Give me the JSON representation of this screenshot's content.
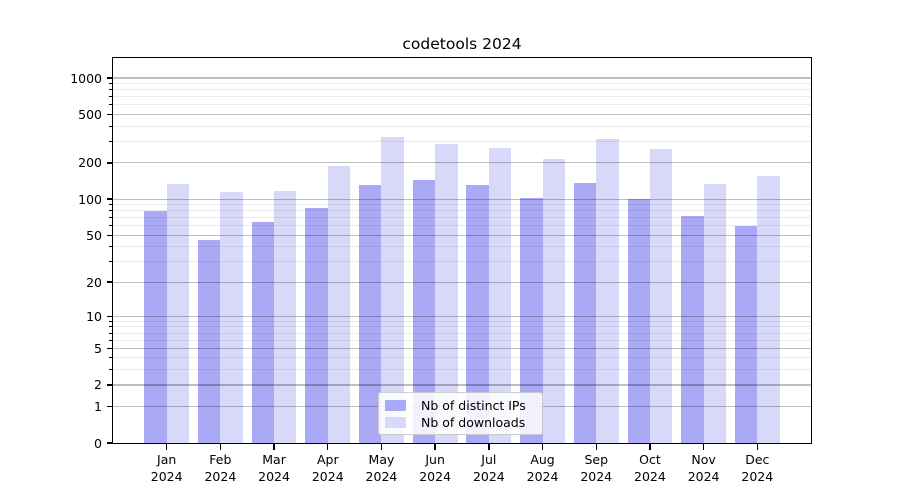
{
  "chart_data": {
    "type": "bar",
    "title": "codetools 2024",
    "categories": [
      "Jan",
      "Feb",
      "Mar",
      "Apr",
      "May",
      "Jun",
      "Jul",
      "Aug",
      "Sep",
      "Oct",
      "Nov",
      "Dec"
    ],
    "year_label": "2024",
    "series": [
      {
        "name": "Nb of distinct IPs",
        "color": "#a9a9f5",
        "values": [
          80,
          46,
          65,
          84,
          131,
          144,
          131,
          103,
          136,
          100,
          72,
          60
        ]
      },
      {
        "name": "Nb of downloads",
        "color": "#d8d8f8",
        "values": [
          133,
          114,
          118,
          190,
          325,
          284,
          267,
          215,
          315,
          260,
          134,
          156
        ]
      }
    ],
    "y_scale": "log10(value+1)",
    "y_major_ticks": [
      0,
      1,
      2,
      5,
      10,
      20,
      50,
      100,
      200,
      500,
      1000
    ],
    "y_minor_ticks": [
      3,
      4,
      6,
      7,
      8,
      9,
      30,
      40,
      60,
      70,
      80,
      90,
      300,
      400,
      600,
      700,
      800,
      900
    ],
    "ylim": [
      0,
      1460
    ],
    "grid": true,
    "legend_position": "lower center",
    "background_color": "#ffffff",
    "axis_color": "#000000"
  }
}
